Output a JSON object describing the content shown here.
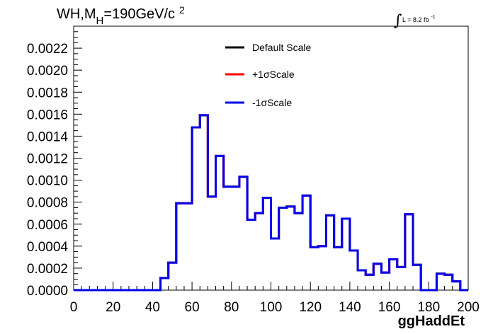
{
  "chart_data": {
    "type": "line",
    "title": {
      "main": "WH,M",
      "subscript": "H",
      "rest": "=190GeV/c",
      "superscript": "2"
    },
    "luminosity": {
      "integral_symbol": "∫",
      "label": "L = 8.2 fb",
      "superscript": "-1"
    },
    "xlabel": "ggHaddEt",
    "ylabel": "",
    "xlim": [
      0,
      200
    ],
    "ylim": [
      0,
      0.0024
    ],
    "x_ticks": [
      0,
      20,
      40,
      60,
      80,
      100,
      120,
      140,
      160,
      180,
      200
    ],
    "y_ticks": [
      "0.0000",
      "0.0002",
      "0.0004",
      "0.0006",
      "0.0008",
      "0.0010",
      "0.0012",
      "0.0014",
      "0.0016",
      "0.0018",
      "0.0020",
      "0.0022"
    ],
    "grid": false,
    "legend_position": "top-center",
    "bin_width": 4,
    "bin_edges_start": 0,
    "series": [
      {
        "name": "Default Scale",
        "color": "#000000",
        "values": [
          0,
          0,
          0,
          0,
          0,
          0,
          0,
          0,
          0,
          0,
          0,
          0.00011,
          0.00025,
          0.00079,
          0.00079,
          0.00148,
          0.00159,
          0.00085,
          0.00122,
          0.00094,
          0.00094,
          0.00103,
          0.00064,
          0.0007,
          0.00084,
          0.00047,
          0.00075,
          0.00076,
          0.0007,
          0.00086,
          0.00039,
          0.0004,
          0.00068,
          0.00039,
          0.00065,
          0.00036,
          0.00018,
          0.00014,
          0.00024,
          0.00016,
          0.00028,
          0.00021,
          0.00069,
          0.00023,
          0,
          0,
          0.00015,
          0.00014,
          8e-05,
          0
        ]
      },
      {
        "name": "+1σScale",
        "color": "#ff0000",
        "values": [
          0,
          0,
          0,
          0,
          0,
          0,
          0,
          0,
          0,
          0,
          0,
          0.00011,
          0.00025,
          0.00079,
          0.00079,
          0.00148,
          0.00159,
          0.00085,
          0.00122,
          0.00094,
          0.00094,
          0.00103,
          0.00064,
          0.0007,
          0.00084,
          0.00047,
          0.00075,
          0.00076,
          0.0007,
          0.00086,
          0.00039,
          0.0004,
          0.00068,
          0.00039,
          0.00065,
          0.00036,
          0.00018,
          0.00014,
          0.00024,
          0.00016,
          0.00028,
          0.00021,
          0.00069,
          0.00023,
          0,
          0,
          0.00015,
          0.00014,
          8e-05,
          0
        ]
      },
      {
        "name": "-1σScale",
        "color": "#0000ee",
        "values": [
          0,
          0,
          0,
          0,
          0,
          0,
          0,
          0,
          0,
          0,
          0,
          0.00011,
          0.00025,
          0.00079,
          0.00079,
          0.00148,
          0.00159,
          0.00085,
          0.00122,
          0.00094,
          0.00094,
          0.00103,
          0.00064,
          0.0007,
          0.00084,
          0.00047,
          0.00075,
          0.00076,
          0.0007,
          0.00086,
          0.00039,
          0.0004,
          0.00068,
          0.00039,
          0.00065,
          0.00036,
          0.00018,
          0.00014,
          0.00024,
          0.00016,
          0.00028,
          0.00021,
          0.00069,
          0.00023,
          0,
          0,
          0.00015,
          0.00014,
          8e-05,
          0
        ]
      }
    ]
  }
}
